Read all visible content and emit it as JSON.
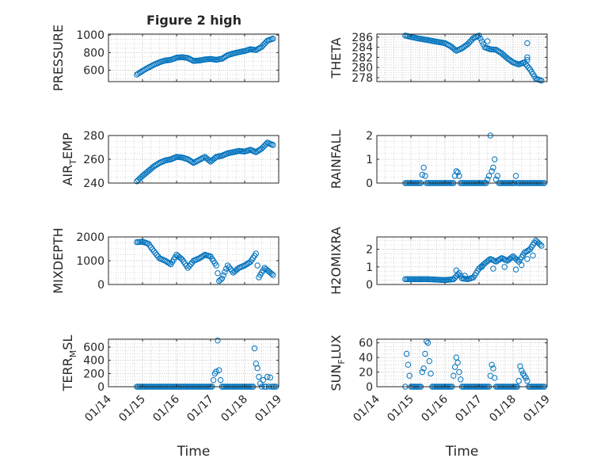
{
  "figure": {
    "title": "Figure 2 high"
  },
  "colors": {
    "marker": "#0072BD",
    "axis": "#262626",
    "grid": "#b8b8b8",
    "background": "#ffffff"
  },
  "chart_data": [
    {
      "id": "pressure",
      "type": "scatter",
      "panel": "left-1",
      "title": "Figure 2 high",
      "ylabel": "PRESSURE",
      "xlabel": "",
      "xlim": [
        "01/14 00:00",
        "01/19 00:00"
      ],
      "ylim": [
        470,
        1010
      ],
      "yticks": [
        600,
        800,
        1000
      ],
      "xticks": [],
      "grid": true,
      "minor_grid": true,
      "series": [
        {
          "points": [
            [
              "01/14 20:00",
              550
            ],
            [
              "01/15 00:00",
              592
            ],
            [
              "01/15 04:00",
              628
            ],
            [
              "01/15 08:00",
              662
            ],
            [
              "01/15 12:00",
              690
            ],
            [
              "01/15 16:00",
              710
            ],
            [
              "01/15 20:00",
              718
            ],
            [
              "01/16 00:00",
              742
            ],
            [
              "01/16 04:00",
              748
            ],
            [
              "01/16 08:00",
              738
            ],
            [
              "01/16 12:00",
              705
            ],
            [
              "01/16 16:00",
              710
            ],
            [
              "01/16 20:00",
              722
            ],
            [
              "01/17 00:00",
              728
            ],
            [
              "01/17 04:00",
              718
            ],
            [
              "01/17 08:00",
              730
            ],
            [
              "01/17 12:00",
              770
            ],
            [
              "01/17 16:00",
              790
            ],
            [
              "01/17 20:00",
              805
            ],
            [
              "01/18 00:00",
              818
            ],
            [
              "01/18 04:00",
              838
            ],
            [
              "01/18 08:00",
              828
            ],
            [
              "01/18 12:00",
              865
            ],
            [
              "01/18 16:00",
              935
            ],
            [
              "01/18 20:00",
              958
            ]
          ],
          "interval_hours": 1
        }
      ]
    },
    {
      "id": "theta",
      "type": "scatter",
      "panel": "right-1",
      "ylabel": "THETA",
      "xlabel": "",
      "xlim": [
        "01/14 00:00",
        "01/19 00:00"
      ],
      "ylim": [
        277.2,
        286.6
      ],
      "yticks": [
        278,
        280,
        282,
        284,
        286
      ],
      "xticks": [],
      "grid": true,
      "minor_grid": true,
      "series": [
        {
          "points": [
            [
              "01/14 20:00",
              286.3
            ],
            [
              "01/15 04:00",
              285.8
            ],
            [
              "01/15 12:00",
              285.4
            ],
            [
              "01/15 20:00",
              285.0
            ],
            [
              "01/16 00:00",
              284.8
            ],
            [
              "01/16 04:00",
              284.2
            ],
            [
              "01/16 08:00",
              283.3
            ],
            [
              "01/16 12:00",
              283.8
            ],
            [
              "01/16 16:00",
              284.6
            ],
            [
              "01/16 20:00",
              285.8
            ],
            [
              "01/17 00:00",
              286.3
            ],
            [
              "01/17 04:00",
              284.0
            ],
            [
              "01/17 08:00",
              283.6
            ],
            [
              "01/17 12:00",
              283.5
            ],
            [
              "01/17 16:00",
              282.8
            ],
            [
              "01/17 20:00",
              281.8
            ],
            [
              "01/18 00:00",
              281.0
            ],
            [
              "01/18 04:00",
              280.6
            ],
            [
              "01/18 08:00",
              281.0
            ],
            [
              "01/18 12:00",
              279.6
            ],
            [
              "01/18 16:00",
              277.8
            ],
            [
              "01/18 20:00",
              277.4
            ]
          ],
          "interval_hours": 1,
          "extra_points": [
            [
              "01/17 06:00",
              285.2
            ],
            [
              "01/18 10:00",
              284.8
            ],
            [
              "01/18 10:00",
              281.5
            ],
            [
              "01/18 10:00",
              282.0
            ]
          ]
        }
      ]
    },
    {
      "id": "airtemp",
      "type": "scatter",
      "panel": "left-2",
      "ylabel": "AIR_TEMP",
      "ylabel_parts": {
        "main": "AIR",
        "sub": "T",
        "rest": "EMP"
      },
      "xlabel": "",
      "xlim": [
        "01/14 00:00",
        "01/19 00:00"
      ],
      "ylim": [
        240,
        280
      ],
      "yticks": [
        240,
        260,
        280
      ],
      "xticks": [],
      "grid": true,
      "minor_grid": true,
      "series": [
        {
          "points": [
            [
              "01/14 20:00",
              241.5
            ],
            [
              "01/15 00:00",
              246
            ],
            [
              "01/15 04:00",
              250
            ],
            [
              "01/15 08:00",
              254
            ],
            [
              "01/15 12:00",
              257
            ],
            [
              "01/15 16:00",
              259
            ],
            [
              "01/15 20:00",
              260
            ],
            [
              "01/16 00:00",
              262
            ],
            [
              "01/16 04:00",
              261.5
            ],
            [
              "01/16 08:00",
              260
            ],
            [
              "01/16 12:00",
              257
            ],
            [
              "01/16 16:00",
              259.5
            ],
            [
              "01/16 20:00",
              262
            ],
            [
              "01/17 00:00",
              258
            ],
            [
              "01/17 04:00",
              262
            ],
            [
              "01/17 08:00",
              263
            ],
            [
              "01/17 12:00",
              265
            ],
            [
              "01/17 16:00",
              266
            ],
            [
              "01/17 20:00",
              267
            ],
            [
              "01/18 00:00",
              266.5
            ],
            [
              "01/18 04:00",
              268
            ],
            [
              "01/18 08:00",
              266
            ],
            [
              "01/18 12:00",
              269
            ],
            [
              "01/18 16:00",
              274
            ],
            [
              "01/18 20:00",
              272
            ]
          ],
          "interval_hours": 1
        }
      ]
    },
    {
      "id": "rainfall",
      "type": "scatter",
      "panel": "right-2",
      "ylabel": "RAINFALL",
      "xlabel": "",
      "xlim": [
        "01/14 00:00",
        "01/19 00:00"
      ],
      "ylim": [
        0,
        2
      ],
      "yticks": [
        0,
        1,
        2
      ],
      "xticks": [],
      "grid": true,
      "minor_grid": true,
      "series": [
        {
          "baseline": 0,
          "baseline_from": "01/14 20:00",
          "baseline_to": "01/18 22:00",
          "interval_hours": 1,
          "points": [
            [
              "01/15 09:00",
              0.65
            ],
            [
              "01/15 08:00",
              0.35
            ],
            [
              "01/15 10:00",
              0.3
            ],
            [
              "01/16 08:00",
              0.5
            ],
            [
              "01/16 09:00",
              0.45
            ],
            [
              "01/16 10:00",
              0.3
            ],
            [
              "01/16 07:00",
              0.3
            ],
            [
              "01/17 06:00",
              0.15
            ],
            [
              "01/17 07:00",
              0.3
            ],
            [
              "01/17 08:00",
              2.0
            ],
            [
              "01/17 09:00",
              0.5
            ],
            [
              "01/17 10:00",
              0.65
            ],
            [
              "01/17 11:00",
              1.0
            ],
            [
              "01/17 12:00",
              0.15
            ],
            [
              "01/17 13:00",
              0.3
            ],
            [
              "01/18 02:00",
              0.3
            ]
          ]
        }
      ]
    },
    {
      "id": "mixdepth",
      "type": "scatter",
      "panel": "left-3",
      "ylabel": "MIXDEPTH",
      "xlabel": "",
      "xlim": [
        "01/14 00:00",
        "01/19 00:00"
      ],
      "ylim": [
        0,
        2000
      ],
      "yticks": [
        0,
        1000,
        2000
      ],
      "xticks": [],
      "grid": true,
      "minor_grid": true,
      "series": [
        {
          "points": [
            [
              "01/14 20:00",
              1780
            ],
            [
              "01/15 00:00",
              1800
            ],
            [
              "01/15 04:00",
              1720
            ],
            [
              "01/15 08:00",
              1400
            ],
            [
              "01/15 12:00",
              1100
            ],
            [
              "01/15 16:00",
              1000
            ],
            [
              "01/15 20:00",
              850
            ],
            [
              "01/16 00:00",
              1250
            ],
            [
              "01/16 04:00",
              1050
            ],
            [
              "01/16 08:00",
              700
            ],
            [
              "01/16 12:00",
              1000
            ],
            [
              "01/16 16:00",
              1100
            ],
            [
              "01/16 20:00",
              1250
            ],
            [
              "01/17 00:00",
              1180
            ],
            [
              "01/17 04:00",
              800
            ],
            [
              "01/17 06:00",
              150
            ],
            [
              "01/17 08:00",
              250
            ],
            [
              "01/17 12:00",
              800
            ],
            [
              "01/17 16:00",
              500
            ],
            [
              "01/17 20:00",
              700
            ],
            [
              "01/18 00:00",
              800
            ],
            [
              "01/18 04:00",
              950
            ],
            [
              "01/18 08:00",
              1300
            ],
            [
              "01/18 10:00",
              300
            ],
            [
              "01/18 14:00",
              700
            ],
            [
              "01/18 18:00",
              500
            ],
            [
              "01/18 20:00",
              400
            ]
          ],
          "interval_hours": 1
        }
      ]
    },
    {
      "id": "h2omixra",
      "type": "scatter",
      "panel": "right-3",
      "ylabel": "H2OMIXRA",
      "xlabel": "",
      "xlim": [
        "01/14 00:00",
        "01/19 00:00"
      ],
      "ylim": [
        0,
        2.7
      ],
      "yticks": [
        0,
        1,
        2
      ],
      "xticks": [],
      "grid": true,
      "minor_grid": true,
      "series": [
        {
          "points": [
            [
              "01/14 20:00",
              0.3
            ],
            [
              "01/15 00:00",
              0.3
            ],
            [
              "01/15 12:00",
              0.3
            ],
            [
              "01/16 00:00",
              0.25
            ],
            [
              "01/16 06:00",
              0.3
            ],
            [
              "01/16 10:00",
              0.65
            ],
            [
              "01/16 12:00",
              0.35
            ],
            [
              "01/16 16:00",
              0.3
            ],
            [
              "01/16 20:00",
              0.4
            ],
            [
              "01/17 00:00",
              0.9
            ],
            [
              "01/17 04:00",
              1.2
            ],
            [
              "01/17 08:00",
              1.45
            ],
            [
              "01/17 12:00",
              1.3
            ],
            [
              "01/17 16:00",
              1.5
            ],
            [
              "01/17 20:00",
              1.35
            ],
            [
              "01/18 00:00",
              1.6
            ],
            [
              "01/18 04:00",
              1.3
            ],
            [
              "01/18 08:00",
              1.8
            ],
            [
              "01/18 12:00",
              2.0
            ],
            [
              "01/18 16:00",
              2.5
            ],
            [
              "01/18 20:00",
              2.2
            ]
          ],
          "interval_hours": 1,
          "extra_points": [
            [
              "01/16 08:00",
              0.8
            ],
            [
              "01/16 14:00",
              0.5
            ],
            [
              "01/17 02:00",
              1.0
            ],
            [
              "01/17 10:00",
              0.9
            ],
            [
              "01/17 18:00",
              1.0
            ],
            [
              "01/18 02:00",
              0.85
            ],
            [
              "01/18 06:00",
              1.1
            ],
            [
              "01/18 10:00",
              1.45
            ],
            [
              "01/18 14:00",
              1.65
            ]
          ]
        }
      ]
    },
    {
      "id": "terrmsl",
      "type": "scatter",
      "panel": "left-4",
      "ylabel": "TERR_MSL",
      "ylabel_parts": {
        "main": "TERR",
        "sub": "M",
        "rest": "SL"
      },
      "xlabel": "Time",
      "xlim": [
        "01/14 00:00",
        "01/19 00:00"
      ],
      "ylim": [
        0,
        720
      ],
      "yticks": [
        0,
        200,
        400,
        600
      ],
      "xticks": [
        "01/14",
        "01/15",
        "01/16",
        "01/17",
        "01/18",
        "01/19"
      ],
      "grid": true,
      "minor_grid": true,
      "series": [
        {
          "baseline": 0,
          "baseline_from": "01/14 20:00",
          "baseline_to": "01/18 22:00",
          "interval_hours": 1,
          "points": [
            [
              "01/17 02:00",
              100
            ],
            [
              "01/17 03:00",
              200
            ],
            [
              "01/17 04:00",
              230
            ],
            [
              "01/17 05:00",
              700
            ],
            [
              "01/17 06:00",
              250
            ],
            [
              "01/17 07:00",
              100
            ],
            [
              "01/18 07:00",
              580
            ],
            [
              "01/18 08:00",
              350
            ],
            [
              "01/18 09:00",
              280
            ],
            [
              "01/18 10:00",
              150
            ],
            [
              "01/18 11:00",
              50
            ],
            [
              "01/18 13:00",
              100
            ],
            [
              "01/18 16:00",
              150
            ],
            [
              "01/18 18:00",
              140
            ]
          ]
        }
      ]
    },
    {
      "id": "sunflux",
      "type": "scatter",
      "panel": "right-4",
      "ylabel": "SUN_FLUX",
      "ylabel_parts": {
        "main": "SUN",
        "sub": "F",
        "rest": "LUX"
      },
      "xlabel": "Time",
      "xlim": [
        "01/14 00:00",
        "01/19 00:00"
      ],
      "ylim": [
        0,
        65
      ],
      "yticks": [
        0,
        20,
        40,
        60
      ],
      "xticks": [
        "01/14",
        "01/15",
        "01/16",
        "01/17",
        "01/18",
        "01/19"
      ],
      "grid": true,
      "minor_grid": true,
      "series": [
        {
          "baseline": 0,
          "baseline_from": "01/14 20:00",
          "baseline_to": "01/18 22:00",
          "interval_hours": 1,
          "points": [
            [
              "01/14 21:00",
              45
            ],
            [
              "01/14 22:00",
              30
            ],
            [
              "01/14 23:00",
              15
            ],
            [
              "01/15 08:00",
              20
            ],
            [
              "01/15 09:00",
              25
            ],
            [
              "01/15 10:00",
              45
            ],
            [
              "01/15 11:00",
              62
            ],
            [
              "01/15 12:00",
              60
            ],
            [
              "01/15 13:00",
              35
            ],
            [
              "01/15 14:00",
              18
            ],
            [
              "01/16 06:00",
              15
            ],
            [
              "01/16 07:00",
              27
            ],
            [
              "01/16 08:00",
              40
            ],
            [
              "01/16 09:00",
              33
            ],
            [
              "01/16 10:00",
              20
            ],
            [
              "01/16 11:00",
              10
            ],
            [
              "01/17 08:00",
              15
            ],
            [
              "01/17 09:00",
              30
            ],
            [
              "01/17 10:00",
              25
            ],
            [
              "01/17 11:00",
              12
            ],
            [
              "01/18 04:00",
              8
            ],
            [
              "01/18 05:00",
              28
            ],
            [
              "01/18 06:00",
              22
            ],
            [
              "01/18 07:00",
              18
            ],
            [
              "01/18 08:00",
              15
            ],
            [
              "01/18 09:00",
              12
            ],
            [
              "01/18 10:00",
              8
            ]
          ]
        }
      ]
    }
  ]
}
